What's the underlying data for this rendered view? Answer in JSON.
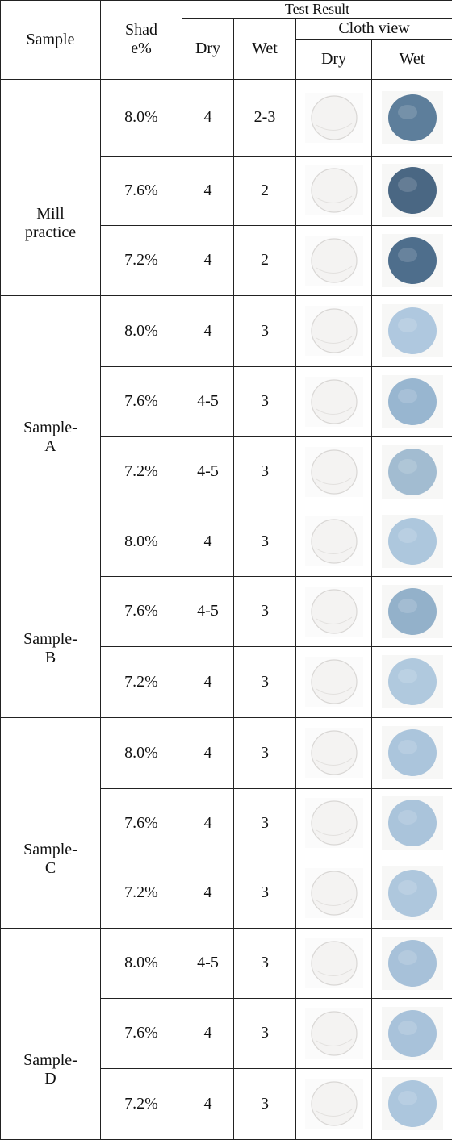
{
  "header": {
    "sample": "Sample",
    "shade": "Shad e%",
    "test_result": "Test Result",
    "cloth_view": "Cloth view",
    "dry": "Dry",
    "wet": "Wet",
    "cloth_dry": "Dry",
    "cloth_wet": "Wet"
  },
  "groups": [
    {
      "name": "Mill practice",
      "rows": [
        {
          "shade": "8.0%",
          "dry": "4",
          "wet": "2-3",
          "wet_swatch": "#4f7392"
        },
        {
          "shade": "7.6%",
          "dry": "4",
          "wet": "2",
          "wet_swatch": "#3b5a78"
        },
        {
          "shade": "7.2%",
          "dry": "4",
          "wet": "2",
          "wet_swatch": "#3f6282"
        }
      ]
    },
    {
      "name": "Sample-A",
      "rows": [
        {
          "shade": "8.0%",
          "dry": "4",
          "wet": "3",
          "wet_swatch": "#a8c3dc"
        },
        {
          "shade": "7.6%",
          "dry": "4-5",
          "wet": "3",
          "wet_swatch": "#8fb0cc"
        },
        {
          "shade": "7.2%",
          "dry": "4-5",
          "wet": "3",
          "wet_swatch": "#9ab6cd"
        }
      ]
    },
    {
      "name": "Sample-B",
      "rows": [
        {
          "shade": "8.0%",
          "dry": "4",
          "wet": "3",
          "wet_swatch": "#a6c2da"
        },
        {
          "shade": "7.6%",
          "dry": "4-5",
          "wet": "3",
          "wet_swatch": "#8aaac6"
        },
        {
          "shade": "7.2%",
          "dry": "4",
          "wet": "3",
          "wet_swatch": "#a9c4db"
        }
      ]
    },
    {
      "name": "Sample-C",
      "rows": [
        {
          "shade": "8.0%",
          "dry": "4",
          "wet": "3",
          "wet_swatch": "#a4c0d9"
        },
        {
          "shade": "7.6%",
          "dry": "4",
          "wet": "3",
          "wet_swatch": "#a3bfd8"
        },
        {
          "shade": "7.2%",
          "dry": "4",
          "wet": "3",
          "wet_swatch": "#a7c2da"
        }
      ]
    },
    {
      "name": "Sample-D",
      "rows": [
        {
          "shade": "8.0%",
          "dry": "4-5",
          "wet": "3",
          "wet_swatch": "#9fbcd6"
        },
        {
          "shade": "7.6%",
          "dry": "4",
          "wet": "3",
          "wet_swatch": "#a1bdd7"
        },
        {
          "shade": "7.2%",
          "dry": "4",
          "wet": "3",
          "wet_swatch": "#a5c1da"
        }
      ]
    }
  ]
}
